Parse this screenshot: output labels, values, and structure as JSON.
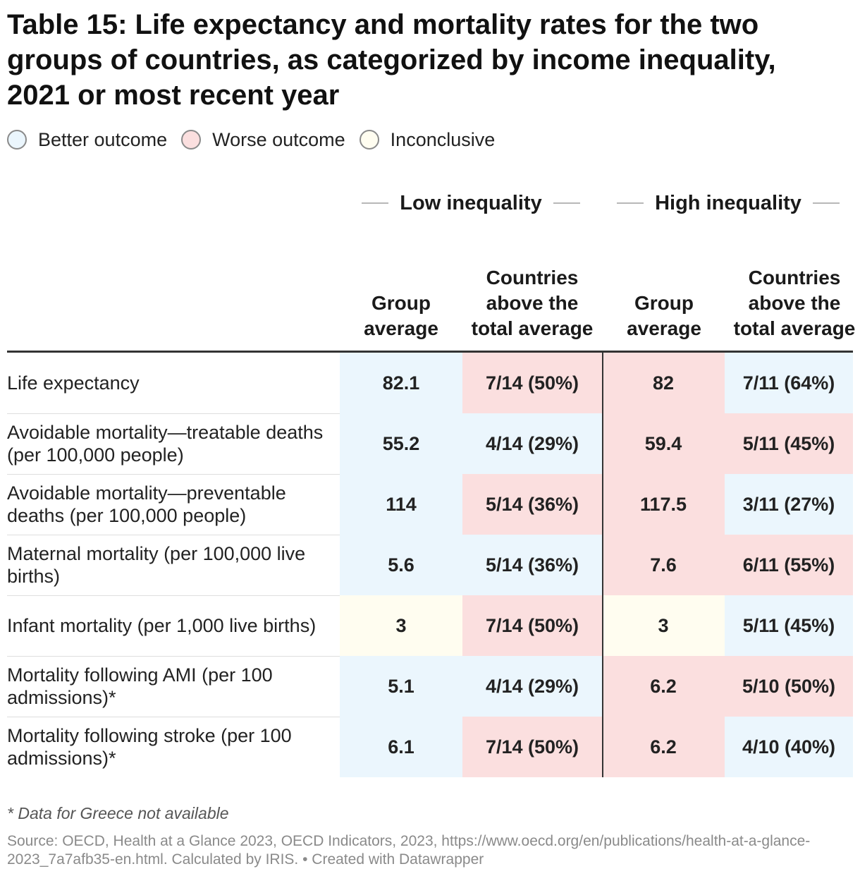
{
  "chart_data": {
    "type": "table",
    "title": "Table 15: Life expectancy and mortality rates for the two groups of countries, as categorized by income inequality, 2021 or most recent year",
    "legend": [
      {
        "label": "Better outcome",
        "color": "#ebf6fd"
      },
      {
        "label": "Worse outcome",
        "color": "#fbdfdf"
      },
      {
        "label": "Inconclusive",
        "color": "#fffdf0"
      }
    ],
    "groups": [
      "Low inequality",
      "High inequality"
    ],
    "columns": [
      "Group average",
      "Countries above the total average",
      "Group average",
      "Countries above the total average"
    ],
    "rows": [
      {
        "label": "Life expectancy",
        "cells": [
          {
            "text": "82.1",
            "status": "better"
          },
          {
            "text": "7/14 (50%)",
            "status": "worse"
          },
          {
            "text": "82",
            "status": "worse"
          },
          {
            "text": "7/11 (64%)",
            "status": "better"
          }
        ]
      },
      {
        "label": "Avoidable mortality—treatable deaths (per 100,000 people)",
        "cells": [
          {
            "text": "55.2",
            "status": "better"
          },
          {
            "text": "4/14 (29%)",
            "status": "better"
          },
          {
            "text": "59.4",
            "status": "worse"
          },
          {
            "text": "5/11 (45%)",
            "status": "worse"
          }
        ]
      },
      {
        "label": "Avoidable mortality—preventable deaths (per 100,000 people)",
        "cells": [
          {
            "text": "114",
            "status": "better"
          },
          {
            "text": "5/14 (36%)",
            "status": "worse"
          },
          {
            "text": "117.5",
            "status": "worse"
          },
          {
            "text": "3/11 (27%)",
            "status": "better"
          }
        ]
      },
      {
        "label": "Maternal mortality (per 100,000 live births)",
        "cells": [
          {
            "text": "5.6",
            "status": "better"
          },
          {
            "text": "5/14 (36%)",
            "status": "better"
          },
          {
            "text": "7.6",
            "status": "worse"
          },
          {
            "text": "6/11 (55%)",
            "status": "worse"
          }
        ]
      },
      {
        "label": "Infant mortality (per 1,000 live births)",
        "cells": [
          {
            "text": "3",
            "status": "inconclusive"
          },
          {
            "text": "7/14 (50%)",
            "status": "worse"
          },
          {
            "text": "3",
            "status": "inconclusive"
          },
          {
            "text": "5/11 (45%)",
            "status": "better"
          }
        ]
      },
      {
        "label": "Mortality following AMI (per 100 admissions)*",
        "cells": [
          {
            "text": "5.1",
            "status": "better"
          },
          {
            "text": "4/14 (29%)",
            "status": "better"
          },
          {
            "text": "6.2",
            "status": "worse"
          },
          {
            "text": "5/10 (50%)",
            "status": "worse"
          }
        ]
      },
      {
        "label": "Mortality following stroke (per 100 admissions)*",
        "cells": [
          {
            "text": "6.1",
            "status": "better"
          },
          {
            "text": "7/14 (50%)",
            "status": "worse"
          },
          {
            "text": "6.2",
            "status": "worse"
          },
          {
            "text": "4/10 (40%)",
            "status": "better"
          }
        ]
      }
    ],
    "annotations": [
      "* Data for Greece not available",
      "Source: OECD, Health at a Glance 2023, OECD Indicators, 2023, https://www.oecd.org/en/publications/health-at-a-glance-2023_7a7afb35-en.html. Calculated by IRIS. • Created with Datawrapper"
    ]
  },
  "colors": {
    "better": "#ebf6fd",
    "worse": "#fbdfdf",
    "inconclusive": "#fffdf0"
  }
}
